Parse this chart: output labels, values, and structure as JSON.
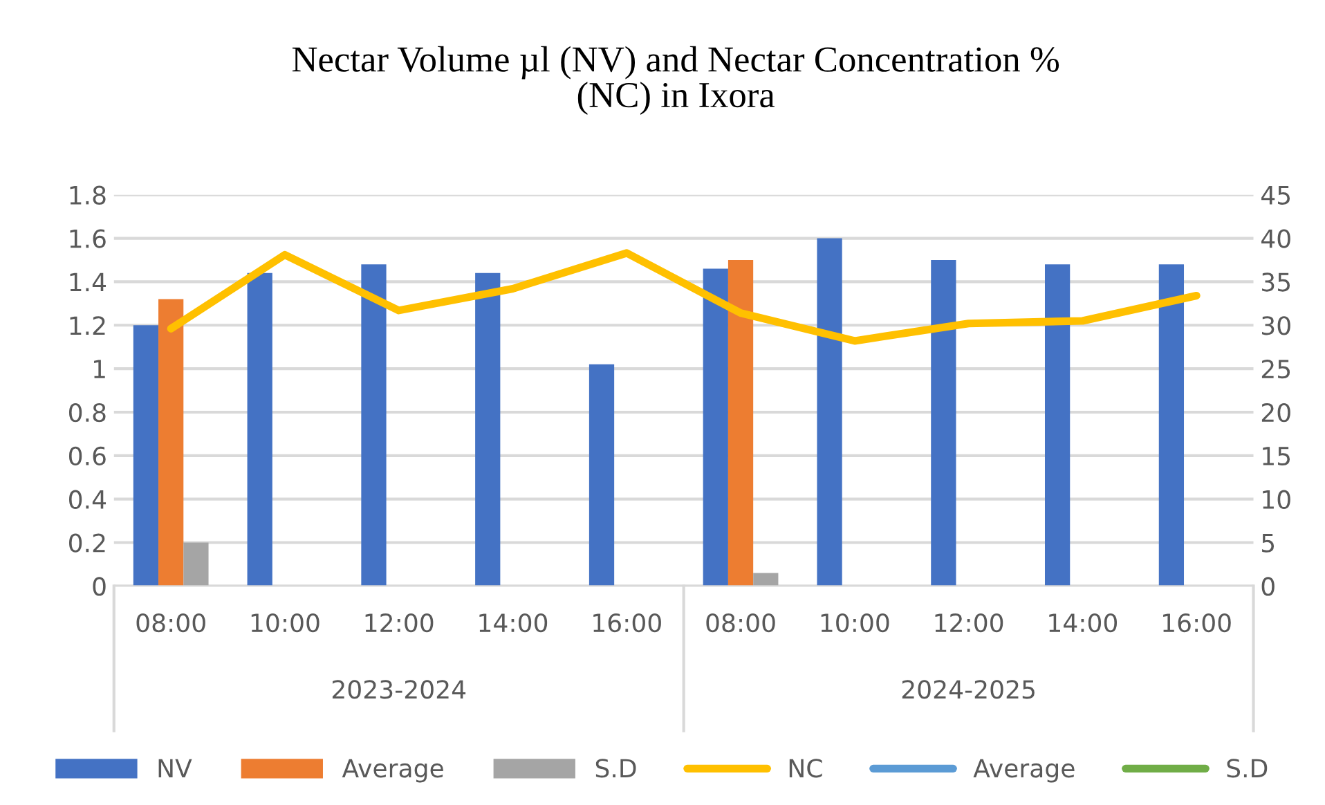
{
  "chart_data": {
    "type": "bar",
    "title": "Nectar Volume µl (NV) and Nectar Concentration %\n(NC) in Ixora",
    "categories": [
      "08:00",
      "10:00",
      "12:00",
      "14:00",
      "16:00",
      "08:00",
      "10:00",
      "12:00",
      "14:00",
      "16:00"
    ],
    "series": [
      {
        "name": "NV",
        "color": "#4472c4",
        "values": [
          1.2,
          1.44,
          1.48,
          1.44,
          1.02,
          1.46,
          1.6,
          1.5,
          1.48,
          1.48
        ]
      },
      {
        "name": "Average",
        "color": "#ed7d31",
        "values": [
          1.32,
          null,
          null,
          null,
          null,
          1.5,
          null,
          null,
          null,
          null
        ]
      },
      {
        "name": "S.D",
        "color": "#a5a5a5",
        "values": [
          0.2,
          null,
          null,
          null,
          null,
          0.06,
          null,
          null,
          null,
          null
        ]
      },
      {
        "name": "NC",
        "type": "line",
        "axis": "y2",
        "color": "#ffc000",
        "values": [
          29.6,
          38.1,
          31.7,
          34.2,
          38.3,
          31.4,
          28.2,
          30.2,
          30.5,
          33.4
        ]
      },
      {
        "name": "Average",
        "type": "line",
        "axis": "y2",
        "color": "#5b9bd5",
        "values": [
          null,
          null,
          null,
          null,
          null,
          null,
          null,
          null,
          null,
          null
        ]
      },
      {
        "name": "S.D",
        "type": "line",
        "axis": "y2",
        "color": "#70ad47",
        "values": [
          null,
          null,
          null,
          null,
          null,
          null,
          null,
          null,
          null,
          null
        ]
      }
    ],
    "ylim": [
      0,
      1.8
    ],
    "yticks": [
      0,
      {
        "value": 0.2,
        "label": "0.2"
      },
      {
        "value": 0.4,
        "label": "0.4"
      },
      {
        "value": 0.6,
        "label": "0.6"
      },
      {
        "value": 0.8,
        "label": "0.8"
      },
      1,
      {
        "value": 1.2,
        "label": "1.2"
      },
      {
        "value": 1.4,
        "label": "1.4"
      },
      {
        "value": 1.6,
        "label": "1.6"
      },
      {
        "value": 1.8,
        "label": "1.8"
      }
    ],
    "y2lim": [
      0,
      45
    ],
    "y2ticks": [
      0,
      5,
      10,
      15,
      20,
      25,
      30,
      35,
      40,
      45
    ],
    "annotations": [
      "2023-2024",
      "2024-2025"
    ],
    "grid": "y",
    "legend": "bottom",
    "line_style": "solid",
    "marker": "none"
  }
}
